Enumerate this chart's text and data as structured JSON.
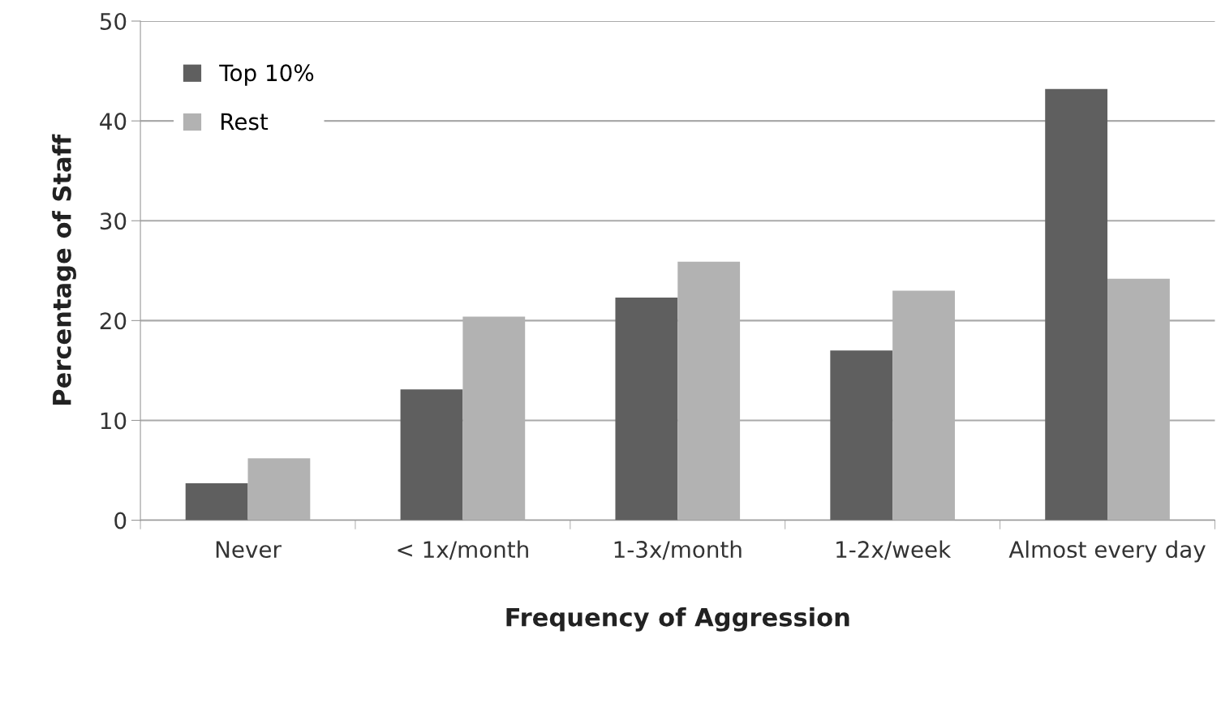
{
  "chart_data": {
    "type": "bar",
    "xlabel": "Frequency of Aggression",
    "ylabel": "Percentage of Staff",
    "categories": [
      "Never",
      "< 1x/month",
      "1-3x/month",
      "1-2x/week",
      "Almost every day"
    ],
    "series": [
      {
        "name": "Top 10%",
        "color": "#5f5f5f",
        "values": [
          3.7,
          13.1,
          22.3,
          17.0,
          43.2
        ]
      },
      {
        "name": "Rest",
        "color": "#b2b2b2",
        "values": [
          6.2,
          20.4,
          25.9,
          23.0,
          24.2
        ]
      }
    ],
    "ylim": [
      0,
      50
    ],
    "yticks": [
      0,
      10,
      20,
      30,
      40,
      50
    ],
    "grid": "y",
    "legend": "top left"
  }
}
